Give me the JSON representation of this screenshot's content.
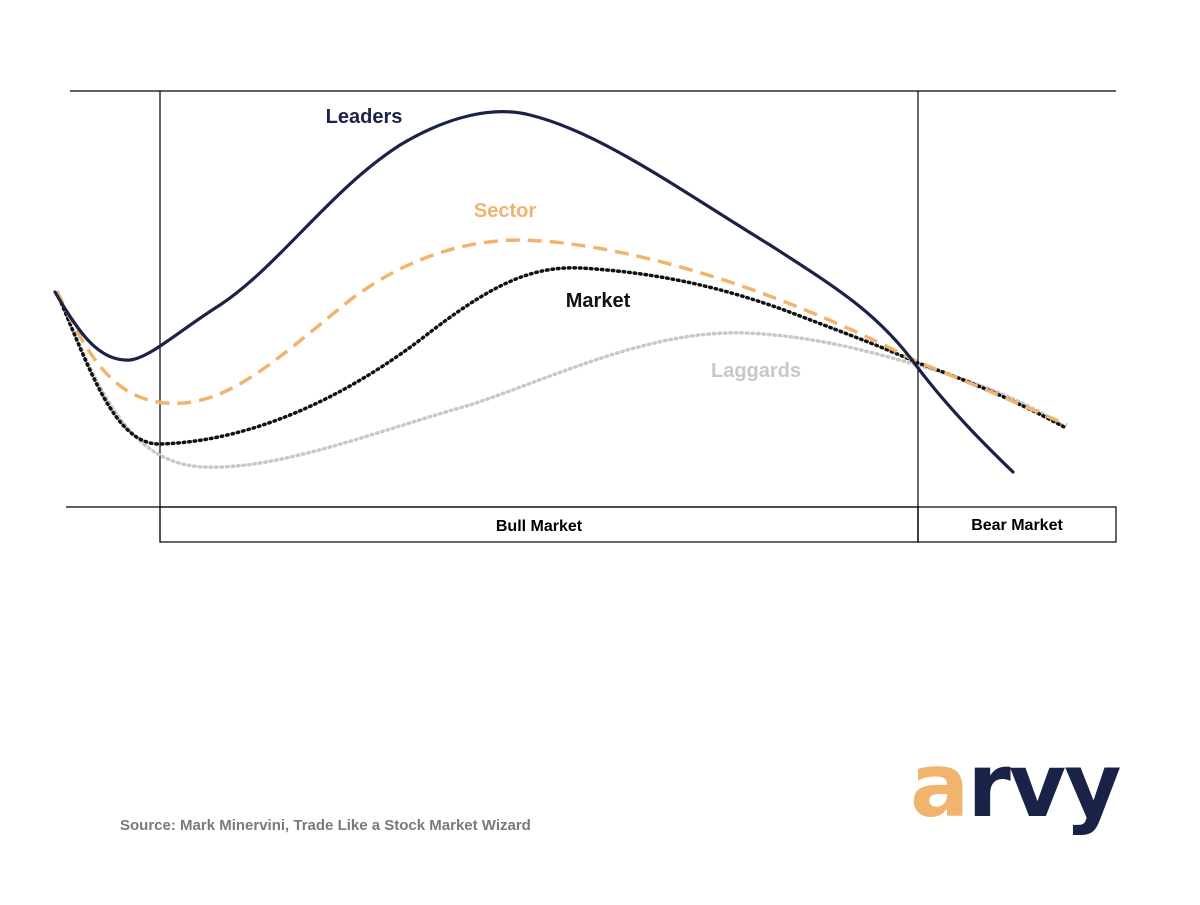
{
  "diagram": {
    "series": [
      {
        "key": "leaders",
        "label": "Leaders",
        "color": "#1b2247",
        "style": "solid"
      },
      {
        "key": "sector",
        "label": "Sector",
        "color": "#f2b36f",
        "style": "dashed"
      },
      {
        "key": "market",
        "label": "Market",
        "color": "#111111",
        "style": "dotted"
      },
      {
        "key": "laggards",
        "label": "Laggards",
        "color": "#c8c8c8",
        "style": "dotted"
      }
    ],
    "phases": [
      {
        "key": "bull",
        "label": "Bull Market"
      },
      {
        "key": "bear",
        "label": "Bear Market"
      }
    ]
  },
  "source": "Source: Mark Minervini, Trade Like a Stock Market Wizard",
  "logo": {
    "accent_text": "a",
    "main_text": "rvy",
    "accent_color": "#f2b36f",
    "main_color": "#1b2247"
  }
}
